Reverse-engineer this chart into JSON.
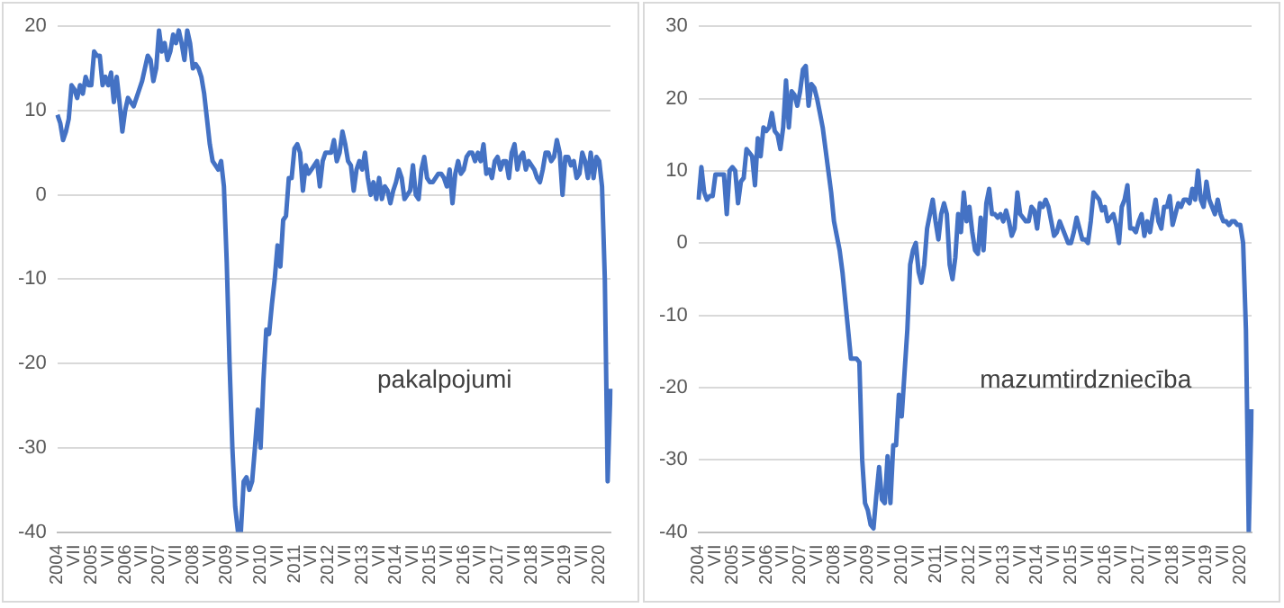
{
  "chart_data": [
    {
      "type": "line",
      "annotations": [
        "pakalpojumi"
      ],
      "grid": "y",
      "legend": false,
      "marker": "none",
      "ylim": [
        -40,
        20
      ],
      "yticks": [
        -40,
        -30,
        -20,
        -10,
        0,
        10,
        20
      ],
      "categories": [
        "2004",
        null,
        null,
        null,
        null,
        null,
        "VII",
        null,
        null,
        null,
        null,
        null,
        "2005",
        null,
        null,
        null,
        null,
        null,
        "VII",
        null,
        null,
        null,
        null,
        null,
        "2006",
        null,
        null,
        null,
        null,
        null,
        "VII",
        null,
        null,
        null,
        null,
        null,
        "2007",
        null,
        null,
        null,
        null,
        null,
        "VII",
        null,
        null,
        null,
        null,
        null,
        "2008",
        null,
        null,
        null,
        null,
        null,
        "VII",
        null,
        null,
        null,
        null,
        null,
        "2009",
        null,
        null,
        null,
        null,
        null,
        "VII",
        null,
        null,
        null,
        null,
        null,
        "2010",
        null,
        null,
        null,
        null,
        null,
        "VII",
        null,
        null,
        null,
        null,
        null,
        "2011",
        null,
        null,
        null,
        null,
        null,
        "VII",
        null,
        null,
        null,
        null,
        null,
        "2012",
        null,
        null,
        null,
        null,
        null,
        "VII",
        null,
        null,
        null,
        null,
        null,
        "2013",
        null,
        null,
        null,
        null,
        null,
        "VII",
        null,
        null,
        null,
        null,
        null,
        "2014",
        null,
        null,
        null,
        null,
        null,
        "VII",
        null,
        null,
        null,
        null,
        null,
        "2015",
        null,
        null,
        null,
        null,
        null,
        "VII",
        null,
        null,
        null,
        null,
        null,
        "2016",
        null,
        null,
        null,
        null,
        null,
        "VII",
        null,
        null,
        null,
        null,
        null,
        "2017",
        null,
        null,
        null,
        null,
        null,
        "VII",
        null,
        null,
        null,
        null,
        null,
        "2018",
        null,
        null,
        null,
        null,
        null,
        "VII",
        null,
        null,
        null,
        null,
        null,
        "2019",
        null,
        null,
        null,
        null,
        null,
        "VII",
        null,
        null,
        null,
        null,
        null,
        "2020",
        null,
        null,
        null,
        null
      ],
      "series": [
        {
          "color": "#4472c4",
          "values": [
            9.5,
            8.5,
            6.5,
            7.5,
            9,
            13,
            12.5,
            11.5,
            13,
            12,
            14,
            13,
            13,
            17,
            16.5,
            16.5,
            13,
            14,
            13,
            14.5,
            11,
            14,
            11,
            7.5,
            10,
            11.5,
            11,
            10.5,
            11.5,
            12.5,
            13.5,
            15,
            16.5,
            16,
            13.5,
            15,
            19.5,
            17,
            18,
            16,
            17,
            19,
            18,
            19.5,
            18,
            16,
            19.5,
            18,
            15,
            15.5,
            15,
            14,
            12,
            9,
            6,
            4,
            3.5,
            3,
            4,
            1,
            -8,
            -20,
            -30,
            -37,
            -40,
            -40,
            -34,
            -33.5,
            -35,
            -34,
            -30,
            -25.5,
            -30,
            -22,
            -16,
            -16.5,
            -13,
            -10,
            -6,
            -8.5,
            -3,
            -2.5,
            2,
            2,
            5.5,
            6,
            5,
            0.5,
            3.5,
            2.5,
            3,
            3.5,
            4,
            1,
            4,
            5,
            5,
            5,
            6.5,
            4,
            5,
            7.5,
            6,
            4,
            3.5,
            0.5,
            3,
            4,
            3,
            5,
            2,
            0,
            1.5,
            -0.5,
            2,
            -0.5,
            1,
            0.5,
            -1,
            0.5,
            1.5,
            3,
            2,
            -0.5,
            0,
            0.5,
            3.5,
            0,
            -0.5,
            3,
            4.5,
            2,
            1.5,
            1.5,
            2,
            2.5,
            2.5,
            2,
            1,
            3,
            -1,
            2.5,
            4,
            2.5,
            3,
            4.5,
            5,
            5,
            4,
            5,
            4,
            6,
            2.5,
            3,
            2,
            4,
            4.5,
            3,
            4,
            4,
            2,
            5,
            6,
            3,
            4.5,
            5,
            3,
            4,
            3.5,
            3,
            2,
            1.5,
            3,
            5,
            5,
            4,
            4.5,
            6.5,
            5,
            0,
            4.5,
            4.5,
            3.5,
            4,
            2,
            2.5,
            5,
            4,
            2,
            5,
            2,
            4.5,
            4,
            1,
            -10,
            -34,
            -23
          ]
        }
      ]
    },
    {
      "type": "line",
      "annotations": [
        "mazumtirdzniecība"
      ],
      "grid": "y",
      "legend": false,
      "marker": "none",
      "ylim": [
        -40,
        30
      ],
      "yticks": [
        -40,
        -30,
        -20,
        -10,
        0,
        10,
        20,
        30
      ],
      "categories": [
        "2004",
        null,
        null,
        null,
        null,
        null,
        "VII",
        null,
        null,
        null,
        null,
        null,
        "2005",
        null,
        null,
        null,
        null,
        null,
        "VII",
        null,
        null,
        null,
        null,
        null,
        "2006",
        null,
        null,
        null,
        null,
        null,
        "VII",
        null,
        null,
        null,
        null,
        null,
        "2007",
        null,
        null,
        null,
        null,
        null,
        "VII",
        null,
        null,
        null,
        null,
        null,
        "2008",
        null,
        null,
        null,
        null,
        null,
        "VII",
        null,
        null,
        null,
        null,
        null,
        "2009",
        null,
        null,
        null,
        null,
        null,
        "VII",
        null,
        null,
        null,
        null,
        null,
        "2010",
        null,
        null,
        null,
        null,
        null,
        "VII",
        null,
        null,
        null,
        null,
        null,
        "2011",
        null,
        null,
        null,
        null,
        null,
        "VII",
        null,
        null,
        null,
        null,
        null,
        "2012",
        null,
        null,
        null,
        null,
        null,
        "VII",
        null,
        null,
        null,
        null,
        null,
        "2013",
        null,
        null,
        null,
        null,
        null,
        "VII",
        null,
        null,
        null,
        null,
        null,
        "2014",
        null,
        null,
        null,
        null,
        null,
        "VII",
        null,
        null,
        null,
        null,
        null,
        "2015",
        null,
        null,
        null,
        null,
        null,
        "VII",
        null,
        null,
        null,
        null,
        null,
        "2016",
        null,
        null,
        null,
        null,
        null,
        "VII",
        null,
        null,
        null,
        null,
        null,
        "2017",
        null,
        null,
        null,
        null,
        null,
        "VII",
        null,
        null,
        null,
        null,
        null,
        "2018",
        null,
        null,
        null,
        null,
        null,
        "VII",
        null,
        null,
        null,
        null,
        null,
        "2019",
        null,
        null,
        null,
        null,
        null,
        "VII",
        null,
        null,
        null,
        null,
        null,
        "2020",
        null,
        null,
        null,
        null
      ],
      "series": [
        {
          "color": "#4472c4",
          "values": [
            6,
            10.5,
            7,
            6,
            6.5,
            6.5,
            9.5,
            9.5,
            9.5,
            9.5,
            4,
            10,
            10.5,
            10,
            5.5,
            8.5,
            9,
            13,
            12.5,
            12,
            8,
            14.5,
            12,
            16,
            15.5,
            16,
            18,
            15.5,
            15,
            13,
            16,
            22.5,
            16,
            21,
            20.5,
            19,
            21,
            24,
            24.5,
            19,
            22,
            21.5,
            20,
            18,
            16,
            13,
            10,
            7,
            3,
            1,
            -1,
            -4,
            -8,
            -12,
            -16,
            -16,
            -16,
            -16.5,
            -30,
            -36,
            -37,
            -39,
            -39.5,
            -35,
            -31,
            -35.5,
            -36,
            -29.5,
            -36,
            -28,
            -28,
            -21,
            -24,
            -18,
            -12,
            -3,
            -1,
            0,
            -4,
            -5.5,
            -3,
            2,
            4,
            6,
            3,
            0.5,
            4,
            5.5,
            4,
            -3,
            -5,
            -2,
            4,
            1.5,
            7,
            3,
            5,
            1.5,
            -1,
            -1.5,
            3.5,
            -1,
            5.5,
            7.5,
            4,
            4,
            3.5,
            4,
            3,
            4.5,
            3,
            1,
            2,
            7,
            4,
            3.5,
            3,
            3,
            5,
            4.5,
            2,
            5.5,
            5,
            6,
            5,
            3,
            1,
            1.5,
            3,
            2,
            1,
            0,
            0,
            1.5,
            3.5,
            2,
            0.5,
            0.5,
            0,
            3,
            7,
            6.5,
            6,
            4.5,
            5,
            3,
            3.5,
            4,
            2.5,
            0,
            5,
            6,
            8,
            2,
            2,
            1.5,
            3,
            4,
            1,
            3,
            1.5,
            4,
            6,
            3,
            2,
            5,
            5,
            6.5,
            2.5,
            4,
            5.5,
            5,
            6,
            6,
            5.5,
            7.5,
            6,
            10,
            6,
            5,
            8.5,
            6,
            5,
            4,
            6,
            4,
            3,
            3,
            2.5,
            3,
            3,
            2.5,
            2.5,
            0,
            -12,
            -40,
            -23
          ]
        }
      ]
    }
  ]
}
